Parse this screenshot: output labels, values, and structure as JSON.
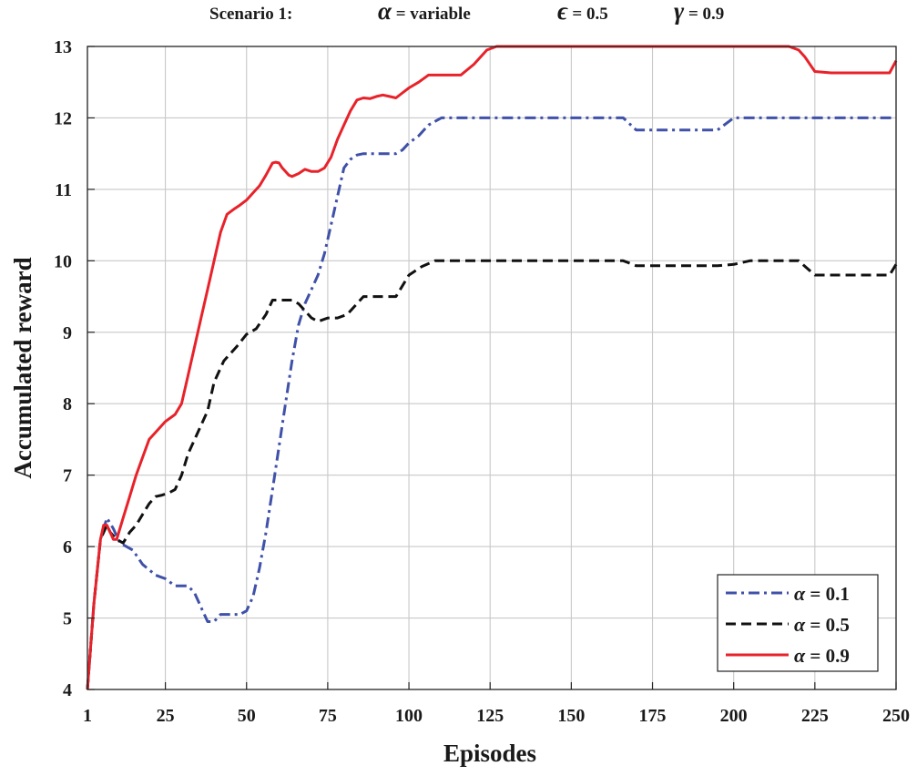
{
  "title": {
    "scenario": "Scenario 1:",
    "alpha_symbol": "α",
    "alpha_text": " = variable",
    "epsilon_symbol": "ϵ",
    "epsilon_text": " = 0.5",
    "gamma_symbol": "γ",
    "gamma_text": " = 0.9"
  },
  "chart_data": {
    "type": "line",
    "xlabel": "Episodes",
    "ylabel": "Accumulated reward",
    "xlim": [
      1,
      250
    ],
    "ylim": [
      4,
      13
    ],
    "xticks": [
      1,
      25,
      50,
      75,
      100,
      125,
      150,
      175,
      200,
      225,
      250
    ],
    "xtick_labels": [
      "1",
      "25",
      "50",
      "75",
      "100",
      "125",
      "150",
      "175",
      "200",
      "225",
      "250"
    ],
    "yticks": [
      4,
      5,
      6,
      7,
      8,
      9,
      10,
      11,
      12,
      13
    ],
    "ytick_labels": [
      "4",
      "5",
      "6",
      "7",
      "8",
      "9",
      "10",
      "11",
      "12",
      "13"
    ],
    "grid": true,
    "legend_position": "bottom-right",
    "series": [
      {
        "name": "α = 0.1",
        "legend_symbol": "α",
        "legend_text": " = 0.1",
        "color": "#3f51a8",
        "style": "dash-dot",
        "x": [
          1,
          3,
          5,
          7,
          9,
          11,
          13,
          15,
          18,
          22,
          25,
          28,
          32,
          34,
          36,
          38,
          40,
          42,
          44,
          46,
          48,
          50,
          52,
          54,
          56,
          58,
          60,
          62,
          64,
          66,
          68,
          70,
          72,
          74,
          76,
          78,
          80,
          82,
          84,
          86,
          88,
          92,
          96,
          98,
          100,
          103,
          106,
          110,
          120,
          140,
          160,
          166,
          170,
          180,
          195,
          200,
          205,
          220,
          235,
          250
        ],
        "y": [
          4.0,
          5.2,
          6.1,
          6.4,
          6.25,
          6.05,
          6.0,
          5.95,
          5.75,
          5.6,
          5.55,
          5.45,
          5.45,
          5.35,
          5.15,
          4.95,
          4.95,
          5.05,
          5.05,
          5.05,
          5.05,
          5.1,
          5.3,
          5.7,
          6.2,
          6.8,
          7.4,
          8.0,
          8.6,
          9.1,
          9.4,
          9.6,
          9.8,
          10.1,
          10.5,
          10.9,
          11.3,
          11.42,
          11.48,
          11.5,
          11.5,
          11.5,
          11.5,
          11.55,
          11.65,
          11.75,
          11.9,
          12.0,
          12.0,
          12.0,
          12.0,
          12.0,
          11.83,
          11.83,
          11.83,
          12.0,
          12.0,
          12.0,
          12.0,
          12.0
        ]
      },
      {
        "name": "α = 0.5",
        "legend_symbol": "α",
        "legend_text": " = 0.5",
        "color": "#111111",
        "style": "dashed",
        "x": [
          1,
          3,
          5,
          7,
          8,
          10,
          12,
          14,
          16,
          18,
          20,
          22,
          24,
          26,
          28,
          30,
          32,
          35,
          38,
          40,
          43,
          47,
          50,
          53,
          56,
          58,
          60,
          62,
          64,
          66,
          68,
          70,
          72,
          75,
          78,
          81,
          84,
          86,
          90,
          96,
          100,
          104,
          108,
          120,
          140,
          166,
          170,
          180,
          195,
          200,
          205,
          210,
          216,
          220,
          225,
          235,
          248,
          250
        ],
        "y": [
          4.0,
          5.2,
          6.1,
          6.3,
          6.2,
          6.1,
          6.05,
          6.2,
          6.3,
          6.45,
          6.6,
          6.7,
          6.72,
          6.75,
          6.8,
          7.0,
          7.3,
          7.6,
          7.9,
          8.3,
          8.6,
          8.8,
          8.97,
          9.05,
          9.25,
          9.45,
          9.45,
          9.45,
          9.45,
          9.4,
          9.3,
          9.2,
          9.15,
          9.2,
          9.2,
          9.25,
          9.4,
          9.5,
          9.5,
          9.5,
          9.8,
          9.92,
          10.0,
          10.0,
          10.0,
          10.0,
          9.93,
          9.93,
          9.93,
          9.95,
          10.0,
          10.0,
          10.0,
          10.0,
          9.8,
          9.8,
          9.8,
          9.95
        ]
      },
      {
        "name": "α = 0.9",
        "legend_symbol": "α",
        "legend_text": " = 0.9",
        "color": "#e8222a",
        "style": "solid",
        "x": [
          1,
          3,
          5,
          6,
          7,
          8,
          9,
          10,
          12,
          14,
          16,
          18,
          20,
          22,
          25,
          28,
          30,
          32,
          34,
          36,
          38,
          40,
          42,
          44,
          46,
          48,
          50,
          52,
          54,
          56,
          58,
          59,
          60,
          61,
          62,
          63,
          64,
          66,
          68,
          70,
          72,
          74,
          76,
          78,
          80,
          82,
          84,
          86,
          88,
          90,
          92,
          94,
          96,
          98,
          100,
          103,
          106,
          110,
          116,
          120,
          124,
          127,
          140,
          160,
          180,
          200,
          217,
          220,
          222,
          225,
          230,
          240,
          248,
          250
        ],
        "y": [
          4.0,
          5.2,
          6.1,
          6.3,
          6.3,
          6.2,
          6.1,
          6.1,
          6.4,
          6.7,
          7.0,
          7.25,
          7.5,
          7.6,
          7.75,
          7.85,
          8.0,
          8.4,
          8.8,
          9.2,
          9.6,
          10.0,
          10.4,
          10.65,
          10.72,
          10.78,
          10.85,
          10.95,
          11.05,
          11.2,
          11.37,
          11.38,
          11.37,
          11.3,
          11.25,
          11.2,
          11.18,
          11.22,
          11.28,
          11.25,
          11.25,
          11.3,
          11.45,
          11.7,
          11.9,
          12.1,
          12.25,
          12.28,
          12.27,
          12.3,
          12.32,
          12.3,
          12.28,
          12.35,
          12.42,
          12.5,
          12.6,
          12.6,
          12.6,
          12.75,
          12.95,
          13.0,
          13.0,
          13.0,
          13.0,
          13.0,
          13.0,
          12.95,
          12.85,
          12.65,
          12.63,
          12.63,
          12.63,
          12.8
        ]
      }
    ]
  }
}
